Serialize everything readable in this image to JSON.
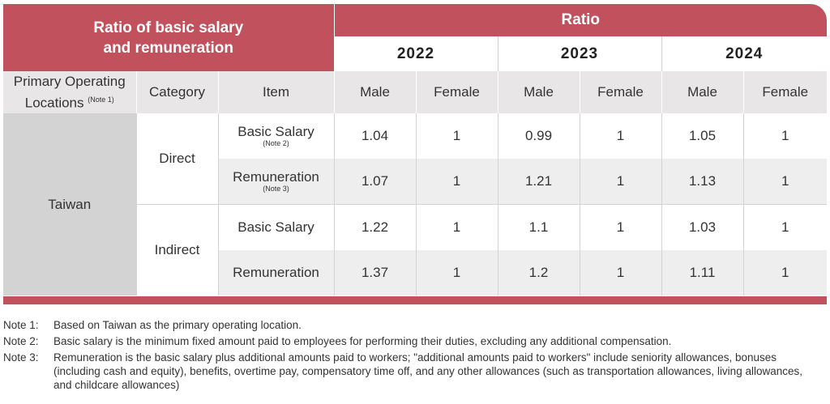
{
  "table": {
    "title_line1": "Ratio of basic salary",
    "title_line2": "and remuneration",
    "ratio_label": "Ratio",
    "years": [
      "2022",
      "2023",
      "2024"
    ],
    "columns": {
      "location": "Primary Operating Locations",
      "location_note": "(Note 1)",
      "category": "Category",
      "item": "Item",
      "male": "Male",
      "female": "Female"
    },
    "location": "Taiwan",
    "categories": [
      "Direct",
      "Indirect"
    ],
    "rows": [
      {
        "item": "Basic Salary",
        "note": "(Note 2)",
        "values": [
          "1.04",
          "1",
          "0.99",
          "1",
          "1.05",
          "1"
        ]
      },
      {
        "item": "Remuneration",
        "note": "(Note 3)",
        "values": [
          "1.07",
          "1",
          "1.21",
          "1",
          "1.13",
          "1"
        ]
      },
      {
        "item": "Basic Salary",
        "note": "",
        "values": [
          "1.22",
          "1",
          "1.1",
          "1",
          "1.03",
          "1"
        ]
      },
      {
        "item": "Remuneration",
        "note": "",
        "values": [
          "1.37",
          "1",
          "1.2",
          "1",
          "1.11",
          "1"
        ]
      }
    ]
  },
  "notes": [
    {
      "label": "Note 1:",
      "text": "Based on Taiwan as the primary operating location."
    },
    {
      "label": "Note 2:",
      "text": "Basic salary is the minimum fixed amount paid to employees for performing their duties, excluding any additional compensation."
    },
    {
      "label": "Note 3:",
      "text": "Remuneration is the basic salary plus additional amounts paid to workers; \"additional amounts paid to workers\" include seniority allowances, bonuses (including cash and equity), benefits, overtime pay, compensatory time off, and any other allowances (such as transportation allowances, living allowances, and childcare allowances)"
    }
  ]
}
